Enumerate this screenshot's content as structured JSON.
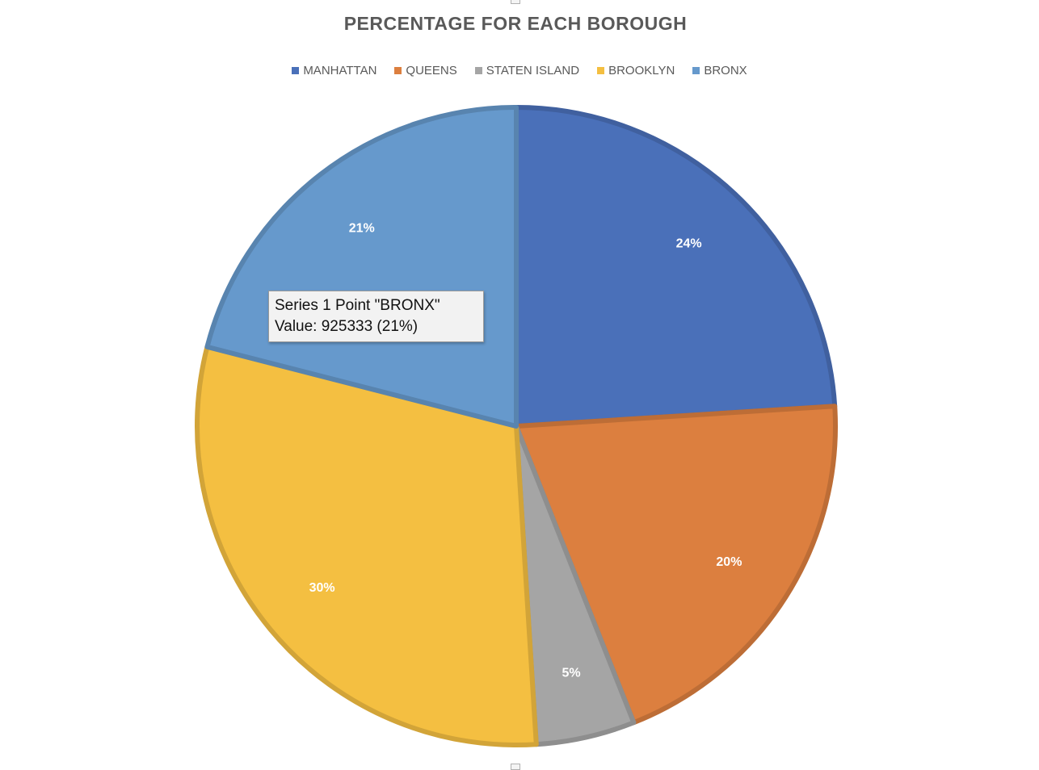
{
  "chart_data": {
    "type": "pie",
    "title": "PERCENTAGE FOR EACH BOROUGH",
    "legend_position": "top",
    "slices": [
      {
        "name": "MANHATTAN",
        "percent": 24,
        "label": "24%",
        "color": "#4A70B9"
      },
      {
        "name": "QUEENS",
        "percent": 20,
        "label": "20%",
        "color": "#DC7F3F"
      },
      {
        "name": "STATEN ISLAND",
        "percent": 5,
        "label": "5%",
        "color": "#A5A5A5"
      },
      {
        "name": "BROOKLYN",
        "percent": 30,
        "label": "30%",
        "color": "#F4BF41"
      },
      {
        "name": "BRONX",
        "percent": 21,
        "label": "21%",
        "color": "#6699CC"
      }
    ]
  },
  "tooltip": {
    "line1": "Series 1 Point \"BRONX\"",
    "line2": "Value: 925333 (21%)"
  }
}
